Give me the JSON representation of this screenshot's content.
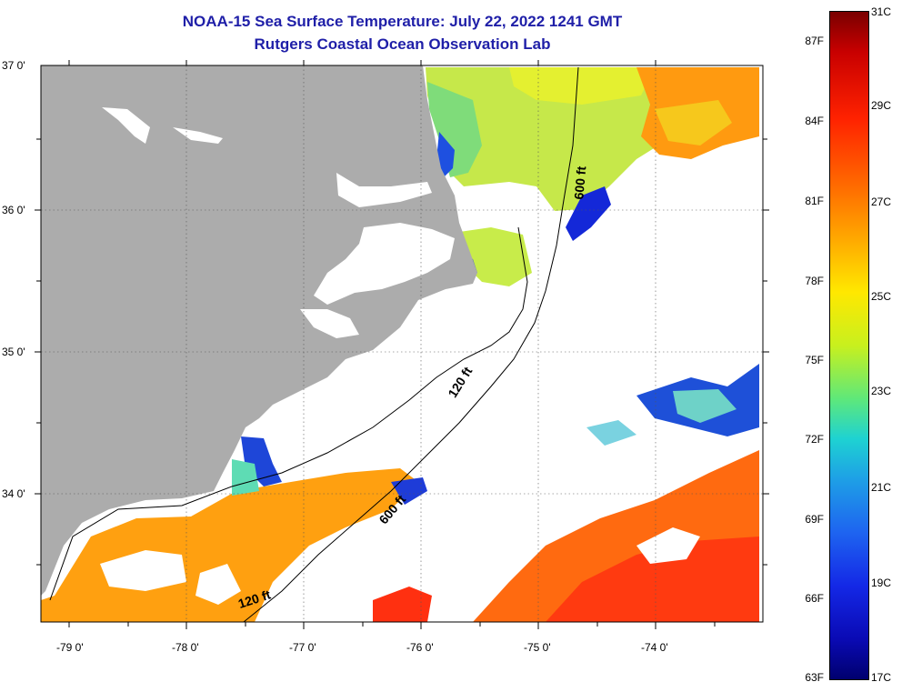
{
  "title": "NOAA-15 Sea Surface Temperature:  July 22, 2022 1241 GMT",
  "subtitle": "Rutgers Coastal Ocean Observation Lab",
  "axes": {
    "lat_labels": [
      "37 0'",
      "36 0'",
      "35 0'",
      "34 0'"
    ],
    "lon_labels": [
      "-79 0'",
      "-78 0'",
      "-77 0'",
      "-76 0'",
      "-75 0'",
      "-74 0'"
    ],
    "lat_range": [
      33.1,
      37.0
    ],
    "lon_range": [
      -79.3,
      -73.15
    ],
    "grid": "dotted"
  },
  "isobaths": [
    {
      "label": "120 ft"
    },
    {
      "label": "120 ft"
    },
    {
      "label": "600 ft"
    },
    {
      "label": "600 ft"
    }
  ],
  "colorbar": {
    "fahrenheit": [
      "87F",
      "84F",
      "81F",
      "78F",
      "75F",
      "72F",
      "69F",
      "66F",
      "63F"
    ],
    "celsius": [
      "31C",
      "29C",
      "27C",
      "25C",
      "23C",
      "21C",
      "19C",
      "17C"
    ],
    "range_c": [
      17,
      31
    ],
    "colors": [
      "#7a0000",
      "#ff2200",
      "#ffa800",
      "#ffe800",
      "#5ee87a",
      "#1ed2d2",
      "#1e64f0",
      "#00006e"
    ]
  },
  "colors": {
    "land": "#acacac",
    "no_data": "#ffffff",
    "title": "#1f1fa8"
  }
}
